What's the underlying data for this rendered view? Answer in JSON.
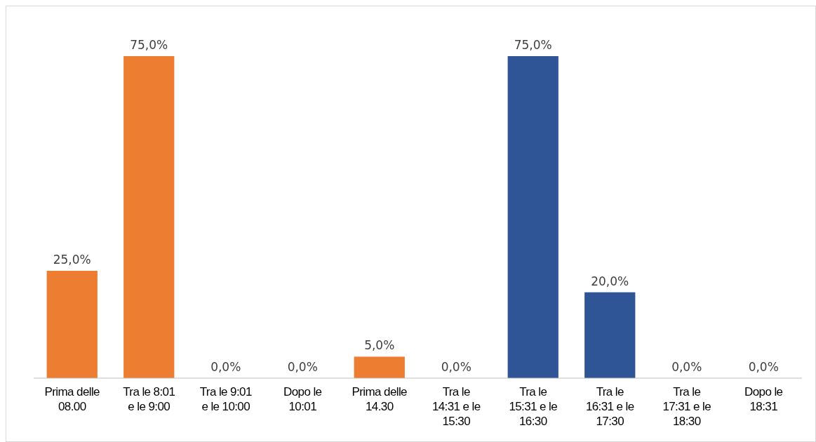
{
  "chart_data": {
    "type": "bar",
    "categories": [
      "Prima delle 08.00",
      "Tra le 8:01 e le 9:00",
      "Tra le 9:01 e le 10:00",
      "Dopo le 10:01",
      "Prima delle 14.30",
      "Tra le 14:31 e le 15:30",
      "Tra le 15:31 e le 16:30",
      "Tra le 16:31 e le 17:30",
      "Tra le 17:31 e le 18:30",
      "Dopo le 18:31"
    ],
    "values": [
      25,
      75,
      0,
      0,
      5,
      0,
      75,
      20,
      0,
      0
    ],
    "colors": [
      "#ed7d31",
      "#ed7d31",
      "#ed7d31",
      "#ed7d31",
      "#ed7d31",
      "#ed7d31",
      "#2f5597",
      "#2f5597",
      "#2f5597",
      "#2f5597"
    ],
    "value_labels": [
      "25,0%",
      "75,0%",
      "0,0%",
      "0,0%",
      "5,0%",
      "0,0%",
      "75,0%",
      "20,0%",
      "0,0%",
      "0,0%"
    ]
  }
}
